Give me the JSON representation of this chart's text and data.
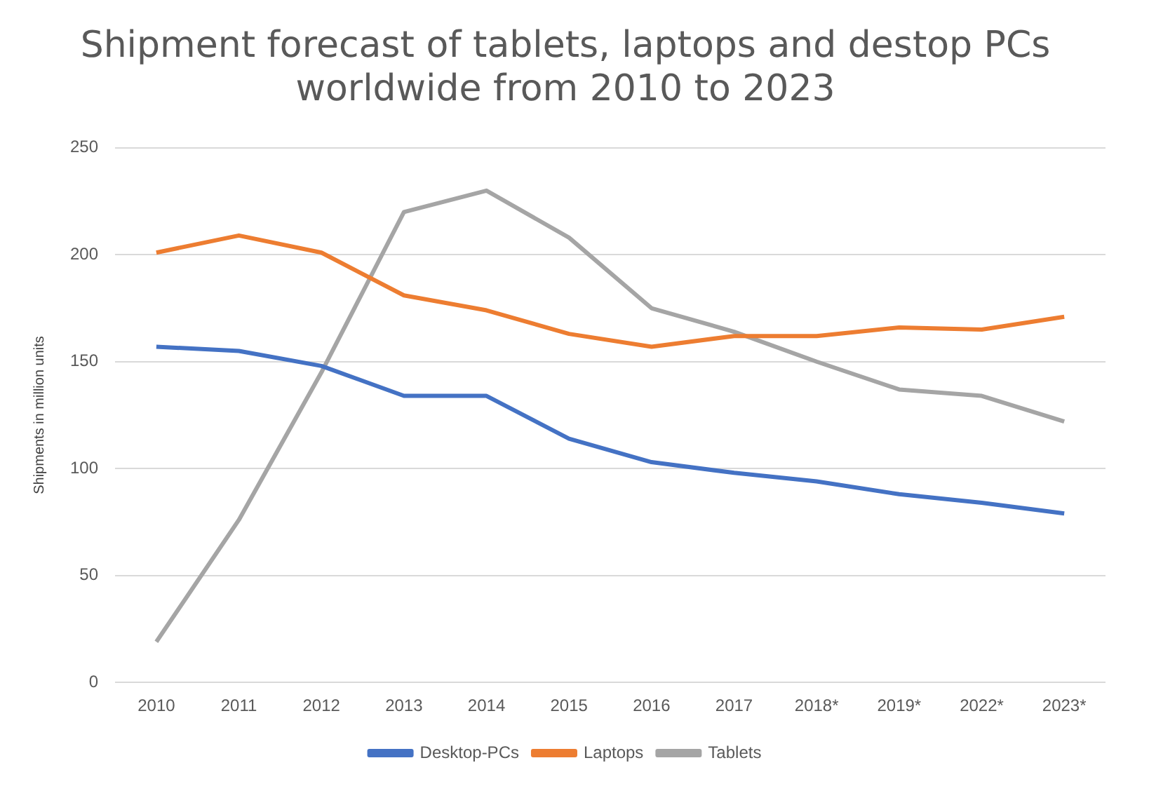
{
  "chart_data": {
    "type": "line",
    "title": "Shipment forecast of tablets, laptops and destop PCs worldwide from 2010 to 2023",
    "ylabel": "Shipments in million units",
    "categories": [
      "2010",
      "2011",
      "2012",
      "2013",
      "2014",
      "2015",
      "2016",
      "2017",
      "2018*",
      "2019*",
      "2022*",
      "2023*"
    ],
    "series": [
      {
        "name": "Desktop-PCs",
        "color": "#4472c4",
        "values": [
          157,
          155,
          148,
          134,
          134,
          114,
          103,
          98,
          94,
          88,
          84,
          79
        ]
      },
      {
        "name": "Laptops",
        "color": "#ed7d31",
        "values": [
          201,
          209,
          201,
          181,
          174,
          163,
          157,
          162,
          162,
          166,
          165,
          171
        ]
      },
      {
        "name": "Tablets",
        "color": "#a5a5a5",
        "values": [
          19,
          76,
          145,
          220,
          230,
          208,
          175,
          164,
          150,
          137,
          134,
          122
        ]
      }
    ],
    "ylim": [
      0,
      250
    ],
    "yticks": [
      0,
      50,
      100,
      150,
      200,
      250
    ],
    "grid": "y",
    "legend": "bottom",
    "marker": "none",
    "line_style": "solid"
  }
}
